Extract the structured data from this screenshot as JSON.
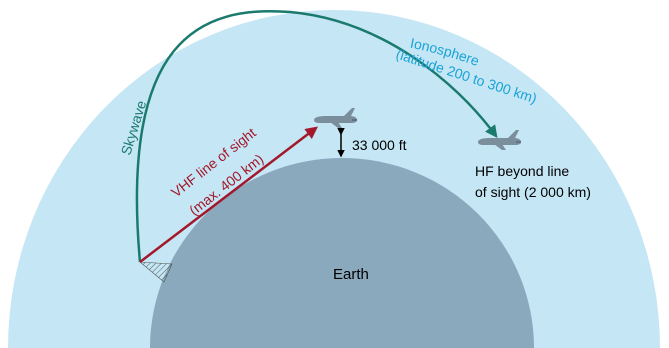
{
  "diagram": {
    "ionosphere_label_line1": "Ionosphere",
    "ionosphere_label_line2": "(latitude 200 to 300 km)",
    "skywave_label": "Skywave",
    "vhf_label_line1": "VHF line of sight",
    "vhf_label_line2": "(max. 400 km)",
    "altitude_label": "33 000 ft",
    "hf_label_line1": "HF beyond line",
    "hf_label_line2": "of sight (2 000 km)",
    "earth_label": "Earth"
  },
  "colors": {
    "ionosphere": "#c5e6f5",
    "earth": "#8aa9bd",
    "skywave": "#1b7a6e",
    "vhf": "#a3182a",
    "ionosphere_text": "#1aa3d6",
    "aircraft": "#7a8e9c"
  }
}
